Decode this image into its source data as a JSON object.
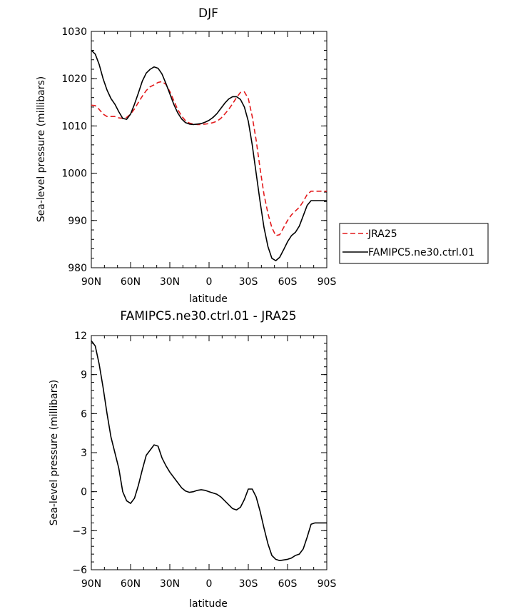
{
  "chart_data": [
    {
      "type": "line",
      "title": "DJF",
      "xlabel": "latitude",
      "ylabel": "Sea-level pressure (millibars)",
      "xlim": [
        90,
        -90
      ],
      "ylim": [
        980,
        1030
      ],
      "xticks": [
        90,
        60,
        30,
        0,
        -30,
        -60,
        -90
      ],
      "xtick_labels": [
        "90N",
        "60N",
        "30N",
        "0",
        "30S",
        "60S",
        "90S"
      ],
      "yticks": [
        980,
        990,
        1000,
        1010,
        1020,
        1030
      ],
      "ytick_labels": [
        "980",
        "990",
        "1000",
        "1010",
        "1020",
        "1030"
      ],
      "legend": "right",
      "series": [
        {
          "name": "JRA25",
          "color": "#e31a1c",
          "dash": "dashed",
          "x": [
            90,
            87,
            84,
            81,
            78,
            75,
            72,
            69,
            66,
            63,
            60,
            57,
            54,
            51,
            48,
            45,
            42,
            39,
            36,
            33,
            30,
            27,
            24,
            21,
            18,
            15,
            12,
            9,
            6,
            3,
            0,
            -3,
            -6,
            -9,
            -12,
            -15,
            -18,
            -21,
            -24,
            -27,
            -30,
            -33,
            -36,
            -39,
            -42,
            -45,
            -48,
            -51,
            -54,
            -57,
            -60,
            -63,
            -66,
            -69,
            -72,
            -75,
            -78,
            -81,
            -84,
            -87,
            -90
          ],
          "y": [
            1014.4,
            1014.3,
            1013.5,
            1012.5,
            1012.0,
            1012.0,
            1012.0,
            1011.7,
            1011.6,
            1011.8,
            1012.5,
            1013.6,
            1015.0,
            1016.3,
            1017.5,
            1018.3,
            1018.7,
            1019.2,
            1019.4,
            1018.8,
            1017.3,
            1015.4,
            1013.5,
            1012.1,
            1011.1,
            1010.6,
            1010.4,
            1010.3,
            1010.3,
            1010.4,
            1010.5,
            1010.7,
            1011.0,
            1011.6,
            1012.5,
            1013.5,
            1014.7,
            1016.0,
            1017.1,
            1017.2,
            1015.8,
            1012.0,
            1007.0,
            1001.0,
            995.5,
            991.5,
            988.5,
            986.8,
            987.0,
            988.5,
            990.0,
            991.2,
            992.0,
            992.8,
            994.0,
            995.5,
            996.2,
            996.2,
            996.2,
            996.2,
            996.2
          ]
        },
        {
          "name": "FAMIPC5.ne30.ctrl.01",
          "color": "#000000",
          "dash": "solid",
          "x": [
            90,
            87,
            84,
            81,
            78,
            75,
            72,
            69,
            66,
            63,
            60,
            57,
            54,
            51,
            48,
            45,
            42,
            39,
            36,
            33,
            30,
            27,
            24,
            21,
            18,
            15,
            12,
            9,
            6,
            3,
            0,
            -3,
            -6,
            -9,
            -12,
            -15,
            -18,
            -21,
            -24,
            -27,
            -30,
            -33,
            -36,
            -39,
            -42,
            -45,
            -48,
            -51,
            -54,
            -57,
            -60,
            -63,
            -66,
            -69,
            -72,
            -75,
            -78,
            -81,
            -84,
            -87,
            -90
          ],
          "y": [
            1026.0,
            1025.2,
            1023.0,
            1020.0,
            1017.6,
            1015.8,
            1014.6,
            1013.0,
            1011.6,
            1011.4,
            1012.5,
            1014.6,
            1017.0,
            1019.5,
            1021.2,
            1022.0,
            1022.5,
            1022.2,
            1021.0,
            1019.0,
            1016.8,
            1014.6,
            1012.8,
            1011.5,
            1010.7,
            1010.4,
            1010.3,
            1010.4,
            1010.5,
            1010.8,
            1011.2,
            1011.8,
            1012.6,
            1013.7,
            1014.8,
            1015.7,
            1016.2,
            1016.2,
            1015.6,
            1014.0,
            1011.0,
            1006.0,
            1000.0,
            994.0,
            988.5,
            984.5,
            982.0,
            981.5,
            982.2,
            983.8,
            985.5,
            986.8,
            987.5,
            988.8,
            991.0,
            993.2,
            994.2,
            994.2,
            994.2,
            994.2,
            994.2
          ]
        }
      ]
    },
    {
      "type": "line",
      "title": "FAMIPC5.ne30.ctrl.01 - JRA25",
      "xlabel": "latitude",
      "ylabel": "Sea-level pressure (millibars)",
      "xlim": [
        90,
        -90
      ],
      "ylim": [
        -6,
        12
      ],
      "xticks": [
        90,
        60,
        30,
        0,
        -30,
        -60,
        -90
      ],
      "xtick_labels": [
        "90N",
        "60N",
        "30N",
        "0",
        "30S",
        "60S",
        "90S"
      ],
      "yticks": [
        -6,
        -3,
        0,
        3,
        6,
        9,
        12
      ],
      "ytick_labels": [
        "−6",
        "−3",
        "0",
        "3",
        "6",
        "9",
        "12"
      ],
      "series": [
        {
          "color": "#000000",
          "dash": "solid",
          "x": [
            90,
            87,
            84,
            81,
            78,
            75,
            72,
            69,
            66,
            63,
            60,
            57,
            54,
            51,
            48,
            45,
            42,
            39,
            36,
            33,
            30,
            27,
            24,
            21,
            18,
            15,
            12,
            9,
            6,
            3,
            0,
            -3,
            -6,
            -9,
            -12,
            -15,
            -18,
            -21,
            -24,
            -27,
            -30,
            -33,
            -36,
            -39,
            -42,
            -45,
            -48,
            -51,
            -54,
            -57,
            -60,
            -63,
            -66,
            -69,
            -72,
            -75,
            -78,
            -81,
            -84,
            -87,
            -90
          ],
          "y": [
            11.6,
            11.2,
            9.8,
            8.0,
            6.0,
            4.2,
            3.0,
            1.8,
            0.0,
            -0.7,
            -0.9,
            -0.5,
            0.5,
            1.7,
            2.8,
            3.2,
            3.6,
            3.5,
            2.6,
            2.0,
            1.5,
            1.1,
            0.7,
            0.3,
            0.05,
            -0.05,
            0.0,
            0.1,
            0.15,
            0.1,
            0.0,
            -0.1,
            -0.2,
            -0.4,
            -0.7,
            -1.0,
            -1.3,
            -1.4,
            -1.2,
            -0.6,
            0.2,
            0.2,
            -0.4,
            -1.5,
            -2.8,
            -4.0,
            -4.9,
            -5.2,
            -5.3,
            -5.25,
            -5.2,
            -5.1,
            -4.9,
            -4.8,
            -4.4,
            -3.5,
            -2.5,
            -2.4,
            -2.4,
            -2.4,
            -2.4
          ]
        }
      ]
    }
  ]
}
